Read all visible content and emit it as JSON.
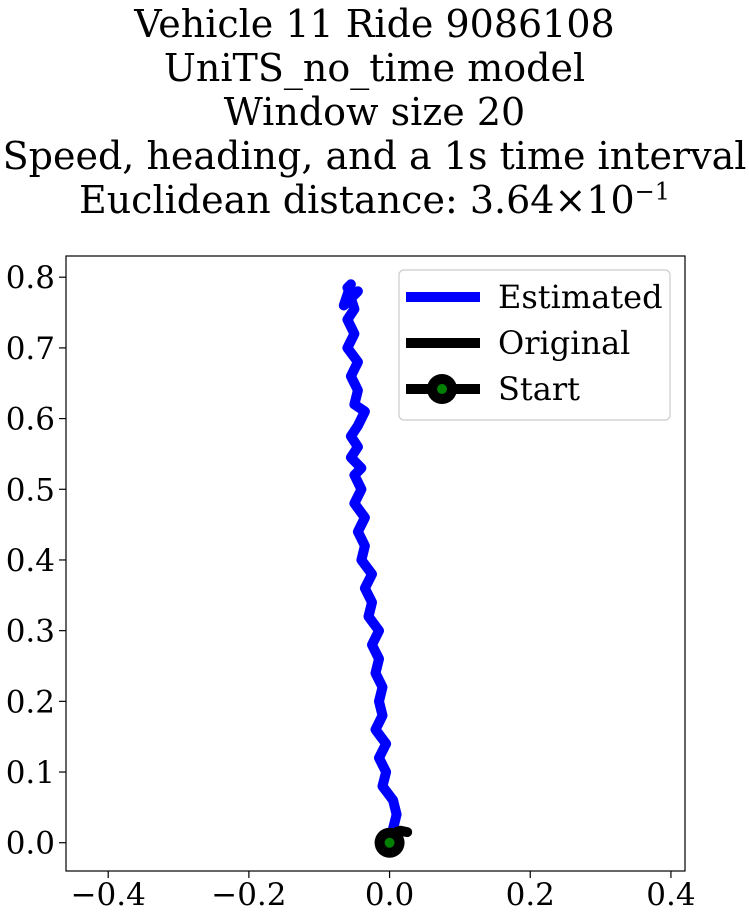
{
  "chart_data": {
    "type": "line",
    "title_lines": [
      "Vehicle 11 Ride 9086108",
      "UniTS_no_time model",
      "Window size 20",
      "Speed, heading, and a 1s time interval"
    ],
    "euclid_label": "Euclidean distance: 3.64",
    "euclid_times": "×",
    "euclid_base": "10",
    "euclid_exp": "−1",
    "xlim": [
      -0.46,
      0.42
    ],
    "ylim": [
      -0.04,
      0.83
    ],
    "xticks": [
      -0.4,
      -0.2,
      0.0,
      0.2,
      0.4
    ],
    "xtick_labels": [
      "−0.4",
      "−0.2",
      "0.0",
      "0.2",
      "0.4"
    ],
    "yticks": [
      0.0,
      0.1,
      0.2,
      0.3,
      0.4,
      0.5,
      0.6,
      0.7,
      0.8
    ],
    "ytick_labels": [
      "0.0",
      "0.1",
      "0.2",
      "0.3",
      "0.4",
      "0.5",
      "0.6",
      "0.7",
      "0.8"
    ],
    "grid": false,
    "legend_position": "top-right",
    "series": [
      {
        "name": "Estimated",
        "color": "#0000ff",
        "x": [
          0.0,
          0.01,
          0.005,
          -0.01,
          -0.005,
          -0.015,
          -0.005,
          -0.02,
          -0.01,
          -0.015,
          -0.01,
          -0.02,
          -0.015,
          -0.025,
          -0.015,
          -0.03,
          -0.025,
          -0.035,
          -0.025,
          -0.04,
          -0.035,
          -0.045,
          -0.035,
          -0.05,
          -0.04,
          -0.05,
          -0.04,
          -0.055,
          -0.045,
          -0.055,
          -0.045,
          -0.035,
          -0.05,
          -0.045,
          -0.055,
          -0.045,
          -0.06,
          -0.05,
          -0.06,
          -0.05,
          -0.055,
          -0.045,
          -0.065,
          -0.055,
          -0.06
        ],
        "y": [
          0.0,
          0.04,
          0.06,
          0.08,
          0.1,
          0.12,
          0.14,
          0.16,
          0.18,
          0.2,
          0.22,
          0.24,
          0.26,
          0.28,
          0.3,
          0.32,
          0.34,
          0.36,
          0.38,
          0.4,
          0.42,
          0.44,
          0.46,
          0.48,
          0.5,
          0.52,
          0.53,
          0.545,
          0.56,
          0.575,
          0.59,
          0.61,
          0.62,
          0.64,
          0.66,
          0.68,
          0.7,
          0.72,
          0.74,
          0.755,
          0.77,
          0.78,
          0.76,
          0.79,
          0.785
        ]
      },
      {
        "name": "Original",
        "color": "#000000",
        "x": [
          0.0,
          0.005,
          0.01,
          0.015,
          0.02,
          0.025
        ],
        "y": [
          0.0,
          0.01,
          0.015,
          0.017,
          0.016,
          0.015
        ]
      }
    ],
    "start": {
      "name": "Start",
      "x": 0.0,
      "y": 0.0,
      "marker_color": "#000000",
      "inner_color": "#008000"
    }
  }
}
